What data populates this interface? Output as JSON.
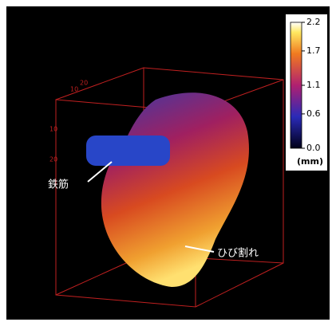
{
  "colorbar": {
    "lim": [
      0,
      2.2
    ],
    "ticks": [
      {
        "value": 0,
        "label": "0.0"
      },
      0.6,
      1.1,
      1.7,
      2.2
    ],
    "unit": "(mm)"
  },
  "annotations": {
    "rebar": "鉄筋",
    "crack": "ひび割れ"
  },
  "box_tick_labels": [
    "10",
    "20",
    "10",
    "20"
  ]
}
